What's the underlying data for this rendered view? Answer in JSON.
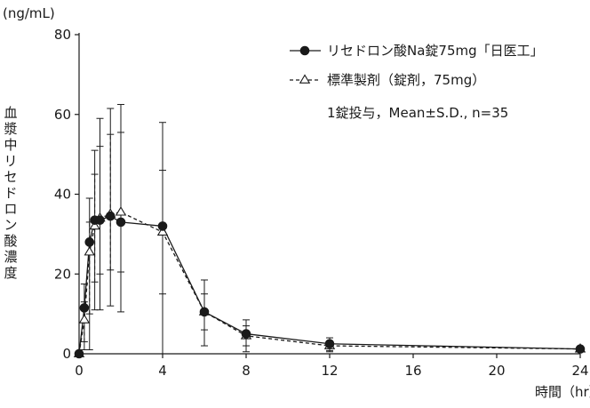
{
  "chart_data": {
    "type": "line",
    "unit_label": "(ng/mL)",
    "xlabel": "時間（hr）",
    "ylabel": "血漿中リセドロン酸濃度",
    "xlim": [
      0,
      24
    ],
    "ylim": [
      0,
      80
    ],
    "x_ticks": [
      0,
      4,
      8,
      12,
      16,
      20,
      24
    ],
    "y_ticks": [
      0,
      20,
      40,
      60,
      80
    ],
    "grid": false,
    "legend_position": "top-right",
    "note": "1錠投与，Mean±S.D., n=35",
    "x": [
      0,
      0.25,
      0.5,
      0.75,
      1,
      1.5,
      2,
      4,
      6,
      8,
      12,
      24
    ],
    "series": [
      {
        "name": "リセドロン酸Na錠75mg「日医工」",
        "marker": "filled-circle",
        "line_style": "solid",
        "color": "#1a1a1a",
        "values": [
          0,
          11.5,
          28,
          33.5,
          33.5,
          34.5,
          33,
          32,
          10.5,
          5,
          2.5,
          1.2
        ],
        "error_upper": [
          0,
          17.5,
          39,
          51,
          59,
          61.5,
          62.5,
          58,
          18.5,
          8.5,
          4,
          1.8
        ],
        "error_lower": [
          0,
          1,
          1,
          11,
          11,
          12,
          10.5,
          0,
          2,
          0.5,
          0.5,
          0.5
        ]
      },
      {
        "name": "標準製剤（錠剤，75mg）",
        "marker": "open-triangle",
        "line_style": "dashed",
        "color": "#1a1a1a",
        "values": [
          0,
          8.5,
          25.5,
          32,
          34,
          35,
          35.5,
          30.5,
          10.5,
          4.5,
          2,
          1.2
        ],
        "error_upper": [
          0,
          13,
          33,
          45,
          52,
          55,
          55.5,
          46,
          15,
          7,
          3.2,
          1.6
        ],
        "error_lower": [
          0,
          3,
          10,
          18,
          20,
          21,
          20.5,
          15,
          6,
          2,
          0.8,
          0.6
        ]
      }
    ]
  }
}
